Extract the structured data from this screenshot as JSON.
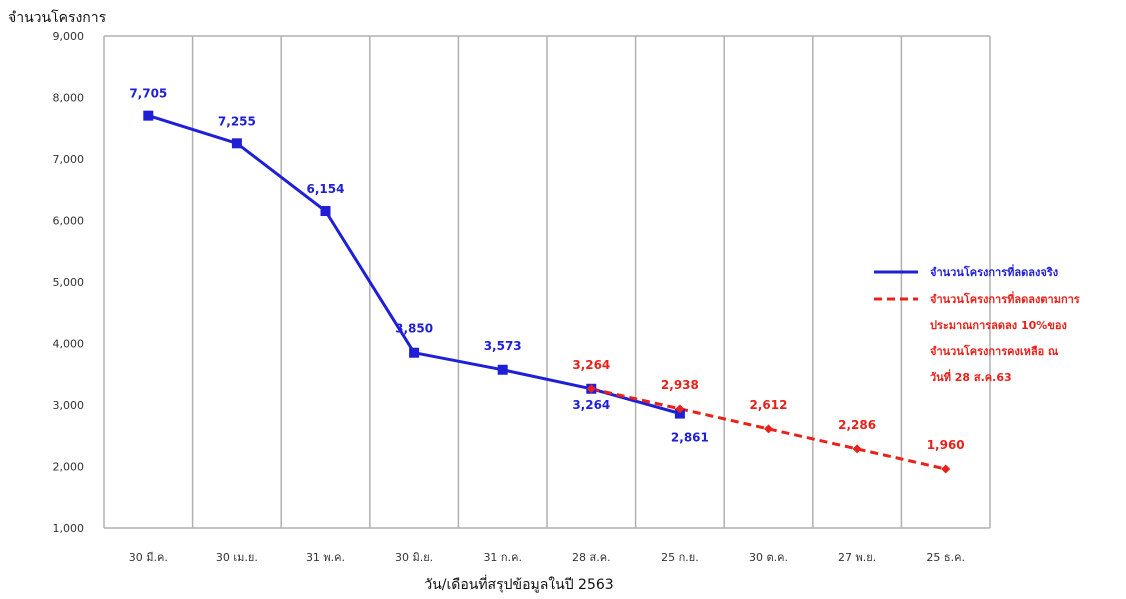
{
  "chart_data": {
    "type": "line",
    "ylabel": "จำนวนโครงการ",
    "xlabel": "วัน/เดือนที่สรุปข้อมูลในปี 2563",
    "ylim": [
      1000,
      9000
    ],
    "yticks": [
      "1,000",
      "2,000",
      "3,000",
      "4,000",
      "5,000",
      "6,000",
      "7,000",
      "8,000",
      "9,000"
    ],
    "categories": [
      "30 มี.ค.",
      "30 เม.ย.",
      "31 พ.ค.",
      "30 มิ.ย.",
      "31 ก.ค.",
      "28 ส.ค.",
      "25 ก.ย.",
      "30 ต.ค.",
      "27 พ.ย.",
      "25 ธ.ค."
    ],
    "grid": "vertical",
    "legend_position": "right",
    "series": [
      {
        "name": "จำนวนโครงการที่ลดลงจริง",
        "color": "#1f1fd6",
        "style": "solid",
        "marker": "square",
        "values": [
          7705,
          7255,
          6154,
          3850,
          3573,
          3264,
          2861,
          null,
          null,
          null
        ],
        "labels": [
          "7,705",
          "7,255",
          "6,154",
          "3,850",
          "3,573",
          "3,264",
          "2,861",
          null,
          null,
          null
        ]
      },
      {
        "name": "จำนวนโครงการที่ลดลงตามการประมาณการลดลง 10%ของจำนวนโครงการคงเหลือ ณ วันที่ 28 ส.ค.63",
        "color": "#e8221b",
        "style": "dashed",
        "marker": "diamond",
        "values": [
          null,
          null,
          null,
          null,
          null,
          3264,
          2938,
          2612,
          2286,
          1960
        ],
        "labels": [
          null,
          null,
          null,
          null,
          null,
          "3,264",
          "2,938",
          "2,612",
          "2,286",
          "1,960"
        ]
      }
    ],
    "legend": [
      {
        "lines": [
          "จำนวนโครงการที่ลดลงจริง"
        ]
      },
      {
        "lines": [
          "จำนวนโครงการที่ลดลงตามการ",
          "ประมาณการลดลง 10%ของ",
          "จำนวนโครงการคงเหลือ ณ",
          "วันที่ 28 ส.ค.63"
        ]
      }
    ]
  }
}
